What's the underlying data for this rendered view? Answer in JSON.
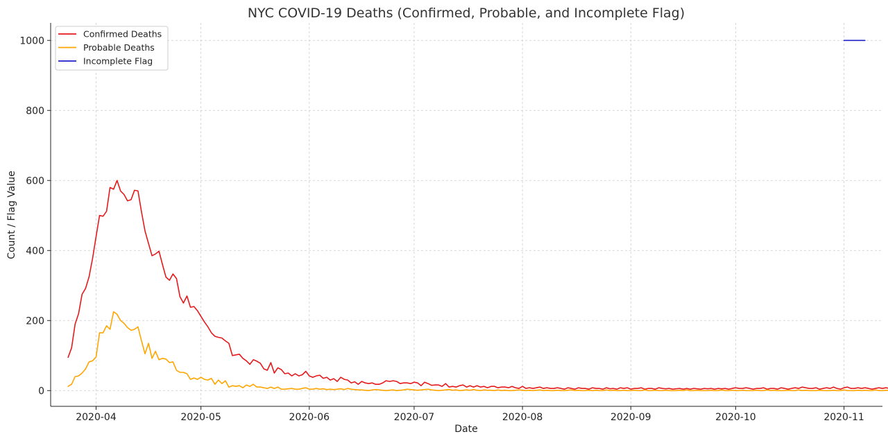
{
  "chart_data": {
    "type": "line",
    "title": "NYC COVID-19 Deaths (Confirmed, Probable, and Incomplete Flag)",
    "xlabel": "Date",
    "ylabel": "Count / Flag Value",
    "xlim": [
      "2020-03-19",
      "2020-11-12"
    ],
    "ylim": [
      -45,
      1050
    ],
    "x_ticks": [
      "2020-04",
      "2020-05",
      "2020-06",
      "2020-07",
      "2020-08",
      "2020-09",
      "2020-10",
      "2020-11"
    ],
    "y_ticks": [
      0,
      200,
      400,
      600,
      800,
      1000
    ],
    "grid": true,
    "legend_position": "top-left",
    "start_date": "2020-03-24",
    "series": [
      {
        "name": "Confirmed Deaths",
        "color": "#e41a1c",
        "values": [
          95,
          122,
          190,
          220,
          275,
          292,
          325,
          378,
          440,
          500,
          498,
          512,
          580,
          575,
          600,
          570,
          560,
          542,
          545,
          572,
          570,
          510,
          456,
          420,
          385,
          390,
          398,
          360,
          324,
          315,
          333,
          320,
          268,
          250,
          270,
          238,
          240,
          228,
          212,
          196,
          182,
          165,
          155,
          152,
          150,
          142,
          135,
          100,
          102,
          104,
          92,
          85,
          75,
          88,
          84,
          78,
          62,
          58,
          80,
          50,
          65,
          60,
          48,
          50,
          42,
          48,
          42,
          45,
          55,
          42,
          38,
          42,
          44,
          35,
          38,
          30,
          34,
          26,
          38,
          32,
          30,
          22,
          25,
          18,
          26,
          22,
          20,
          22,
          18,
          18,
          22,
          28,
          26,
          28,
          26,
          20,
          22,
          22,
          20,
          24,
          22,
          14,
          24,
          20,
          15,
          16,
          16,
          12,
          20,
          10,
          12,
          10,
          14,
          16,
          10,
          14,
          10,
          14,
          10,
          12,
          8,
          12,
          12,
          8,
          10,
          10,
          8,
          12,
          8,
          6,
          12,
          6,
          8,
          6,
          8,
          10,
          6,
          8,
          6,
          6,
          8,
          6,
          4,
          8,
          6,
          4,
          8,
          6,
          6,
          4,
          8,
          6,
          6,
          4,
          8,
          5,
          6,
          4,
          8,
          6,
          8,
          4,
          6,
          6,
          8,
          4,
          6,
          6,
          4,
          8,
          6,
          5,
          6,
          4,
          5,
          6,
          4,
          6,
          4,
          6,
          5,
          4,
          6,
          5,
          6,
          4,
          6,
          5,
          6,
          4,
          6,
          8,
          6,
          6,
          8,
          6,
          4,
          6,
          6,
          8,
          4,
          6,
          6,
          4,
          8,
          6,
          4,
          6,
          8,
          6,
          10,
          8,
          6,
          6,
          8,
          4,
          6,
          8,
          6,
          10,
          6,
          4,
          8,
          10,
          6,
          6,
          8,
          6,
          8,
          6,
          4,
          6,
          8,
          6,
          8,
          6,
          8,
          10,
          6,
          8,
          10,
          6,
          8,
          12,
          8,
          8,
          6,
          8,
          6,
          4,
          6,
          8,
          8,
          10,
          8,
          6,
          8,
          10,
          12,
          8,
          6,
          6,
          4,
          2
        ]
      },
      {
        "name": "Probable Deaths",
        "color": "#ffa500",
        "values": [
          12,
          18,
          40,
          42,
          50,
          62,
          82,
          85,
          96,
          165,
          165,
          185,
          175,
          225,
          218,
          200,
          192,
          180,
          172,
          175,
          182,
          142,
          105,
          135,
          92,
          112,
          88,
          92,
          90,
          80,
          82,
          58,
          52,
          52,
          48,
          32,
          36,
          32,
          38,
          32,
          30,
          35,
          18,
          30,
          20,
          28,
          10,
          14,
          12,
          14,
          8,
          16,
          12,
          18,
          10,
          10,
          8,
          6,
          10,
          6,
          10,
          4,
          4,
          5,
          6,
          4,
          4,
          6,
          8,
          4,
          4,
          6,
          4,
          5,
          3,
          4,
          3,
          4,
          5,
          3,
          6,
          4,
          3,
          2,
          2,
          1,
          0,
          2,
          3,
          2,
          1,
          0,
          1,
          2,
          0,
          1,
          2,
          4,
          3,
          2,
          1,
          2,
          3,
          4,
          2,
          1,
          0,
          1,
          2,
          3,
          1,
          2,
          0,
          1,
          2,
          1,
          3,
          1,
          0,
          2,
          1,
          1,
          0,
          2,
          0,
          1,
          0,
          0,
          1,
          2,
          1,
          0,
          1,
          0,
          1,
          2,
          0,
          1,
          0,
          0,
          1,
          0,
          0,
          1,
          2,
          0,
          1,
          0,
          0,
          1,
          0,
          1,
          0,
          0,
          2,
          0,
          1,
          0,
          0,
          1,
          0,
          0,
          1,
          0,
          0,
          2,
          0,
          0,
          1,
          0,
          0,
          1,
          0,
          0,
          0,
          1,
          0,
          2,
          0,
          0,
          1,
          0,
          0,
          0,
          1,
          0,
          0,
          2,
          0,
          0,
          1,
          0,
          0,
          1,
          0,
          0,
          0,
          1,
          0,
          0,
          2,
          0,
          1,
          0,
          0,
          0,
          1,
          0,
          0,
          2,
          0,
          1,
          0,
          0,
          0,
          1,
          0,
          0,
          0,
          1,
          0,
          0,
          2,
          0,
          0,
          0,
          1,
          0,
          1,
          0,
          0,
          2,
          0,
          0,
          1,
          0,
          0,
          0,
          1,
          0,
          0,
          2,
          0,
          1,
          0,
          0,
          0,
          1,
          0,
          2,
          0,
          0,
          1,
          0,
          0,
          0,
          1,
          2,
          2,
          3,
          2,
          1,
          0
        ]
      },
      {
        "name": "Incomplete Flag",
        "color": "#1f1fcc",
        "x": [
          "2020-11-01",
          "2020-11-07"
        ],
        "values": [
          1000,
          1000
        ]
      }
    ]
  }
}
